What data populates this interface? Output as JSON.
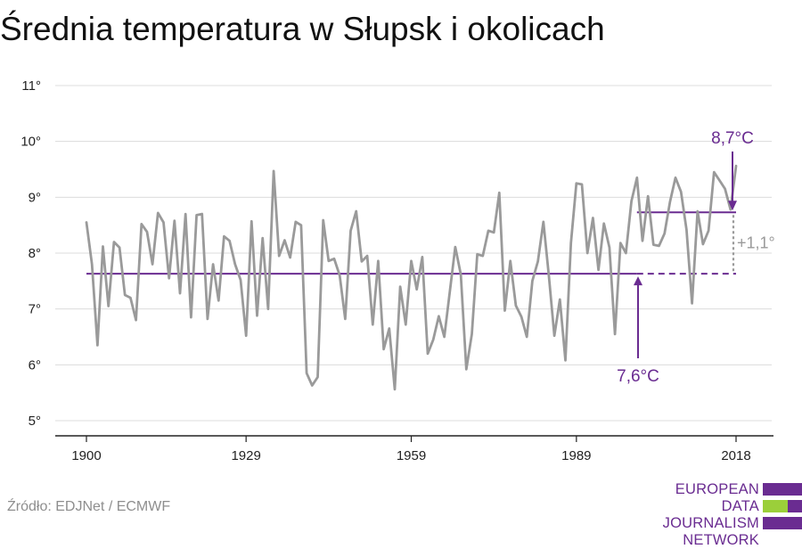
{
  "title": "Średnia temperatura w Słupsk i okolicach",
  "source": "Źródło: EDJNet / ECMWF",
  "logo": {
    "line1": "EUROPEAN",
    "line2": "DATA JOURNALISM",
    "line3": "NETWORK"
  },
  "colors": {
    "series": "#9a9a9a",
    "baseline": "#6a2c91",
    "recent": "#6a2c91",
    "diff": "#9a9a9a",
    "grid": "#dcdcdc",
    "logo_purple": "#6a2c91",
    "logo_green": "#9bcf3a"
  },
  "chart_data": {
    "type": "line",
    "title": "Średnia temperatura w Słupsk i okolicach",
    "xlabel": "",
    "ylabel": "",
    "xlim": [
      1900,
      2018
    ],
    "ylim": [
      5,
      11
    ],
    "y_ticks": [
      5,
      6,
      7,
      8,
      9,
      10,
      11
    ],
    "y_tick_labels": [
      "5°",
      "6°",
      "7°",
      "8°",
      "9°",
      "10°",
      "11°"
    ],
    "x_ticks": [
      1900,
      1929,
      1959,
      1989,
      2018
    ],
    "x_tick_labels": [
      "1900",
      "1929",
      "1959",
      "1989",
      "2018"
    ],
    "grid": true,
    "legend": "none",
    "series": [
      {
        "x": [
          1900,
          1901,
          1902,
          1903,
          1904,
          1905,
          1906,
          1907,
          1908,
          1909,
          1910,
          1911,
          1912,
          1913,
          1914,
          1915,
          1916,
          1917,
          1918,
          1919,
          1920,
          1921,
          1922,
          1923,
          1924,
          1925,
          1926,
          1927,
          1928,
          1929,
          1930,
          1931,
          1932,
          1933,
          1934,
          1935,
          1936,
          1937,
          1938,
          1939,
          1940,
          1941,
          1942,
          1943,
          1944,
          1945,
          1946,
          1947,
          1948,
          1949,
          1950,
          1951,
          1952,
          1953,
          1954,
          1955,
          1956,
          1957,
          1958,
          1959,
          1960,
          1961,
          1962,
          1963,
          1964,
          1965,
          1966,
          1967,
          1968,
          1969,
          1970,
          1971,
          1972,
          1973,
          1974,
          1975,
          1976,
          1977,
          1978,
          1979,
          1980,
          1981,
          1982,
          1983,
          1984,
          1985,
          1986,
          1987,
          1988,
          1989,
          1990,
          1991,
          1992,
          1993,
          1994,
          1995,
          1996,
          1997,
          1998,
          1999,
          2000,
          2001,
          2002,
          2003,
          2004,
          2005,
          2006,
          2007,
          2008,
          2009,
          2010,
          2011,
          2012,
          2013,
          2014,
          2015,
          2016,
          2017,
          2018
        ],
        "values": [
          8.55,
          7.8,
          6.35,
          8.12,
          7.05,
          8.2,
          8.1,
          7.25,
          7.2,
          6.8,
          8.52,
          8.38,
          7.8,
          8.72,
          8.55,
          7.55,
          8.58,
          7.28,
          8.7,
          6.85,
          8.68,
          8.7,
          6.82,
          7.8,
          7.15,
          8.3,
          8.22,
          7.8,
          7.52,
          6.52,
          8.57,
          6.88,
          8.27,
          7.0,
          9.47,
          7.95,
          8.23,
          7.92,
          8.56,
          8.5,
          5.85,
          5.63,
          5.78,
          8.59,
          7.86,
          7.9,
          7.6,
          6.82,
          8.4,
          8.75,
          7.85,
          7.95,
          6.72,
          7.86,
          6.28,
          6.65,
          5.56,
          7.4,
          6.72,
          7.86,
          7.35,
          7.93,
          6.2,
          6.45,
          6.87,
          6.5,
          7.3,
          8.11,
          7.62,
          5.92,
          6.55,
          7.98,
          7.95,
          8.4,
          8.37,
          9.08,
          6.97,
          7.86,
          7.06,
          6.86,
          6.5,
          7.5,
          7.85,
          8.56,
          7.6,
          6.52,
          7.17,
          6.08,
          8.18,
          9.25,
          9.23,
          8.0,
          8.63,
          7.7,
          8.53,
          8.1,
          6.55,
          8.18,
          8.0,
          8.93,
          9.35,
          8.22,
          9.02,
          8.15,
          8.13,
          8.35,
          8.92,
          9.35,
          9.1,
          8.42,
          7.1,
          8.75,
          8.16,
          8.4,
          9.45,
          9.3,
          9.15,
          8.78,
          9.56
        ]
      }
    ],
    "reference_lines": [
      {
        "label": "7,6°C",
        "value": 7.63,
        "x_start": 1900,
        "x_end": 2018,
        "dashed_from": 2000
      },
      {
        "label": "8,7°C",
        "value": 8.73,
        "x_start": 2000,
        "x_end": 2018
      }
    ],
    "annotations": [
      {
        "text": "8,7°C"
      },
      {
        "text": "7,6°C"
      },
      {
        "text": "+1,1°"
      }
    ]
  }
}
